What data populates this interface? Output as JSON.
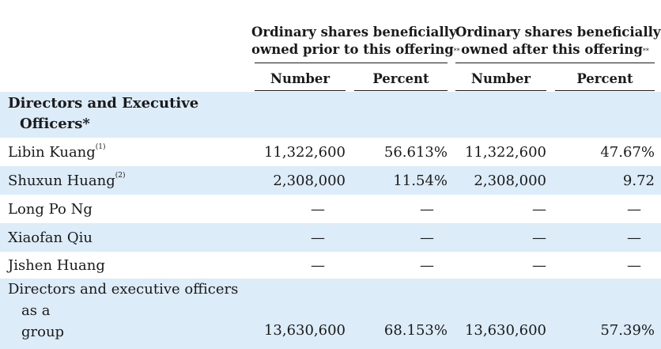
{
  "header": {
    "group_prior": {
      "line1": "Ordinary shares beneficially",
      "line2": "owned prior to this offering",
      "mark": "**"
    },
    "group_after": {
      "line1": "Ordinary shares beneficially",
      "line2": "owned after this offering",
      "mark": "**"
    },
    "col_number_prior": "Number",
    "col_percent_prior": "Percent",
    "col_number_after": "Number",
    "col_percent_after": "Percent"
  },
  "section": {
    "line1": "Directors and Executive",
    "line2": "Officers*"
  },
  "rows": [
    {
      "name": "Libin Kuang",
      "note": "(1)",
      "num_prior": "11,322,600",
      "pct_prior": "56.613%",
      "num_after": "11,322,600",
      "pct_after": "47.67%"
    },
    {
      "name": "Shuxun Huang",
      "note": "(2)",
      "num_prior": "2,308,000",
      "pct_prior": "11.54%",
      "num_after": "2,308,000",
      "pct_after": "9.72"
    },
    {
      "name": "Long Po Ng",
      "note": "",
      "num_prior": "—",
      "pct_prior": "—",
      "num_after": "—",
      "pct_after": "—"
    },
    {
      "name": "Xiaofan Qiu",
      "note": "",
      "num_prior": "—",
      "pct_prior": "—",
      "num_after": "—",
      "pct_after": "—"
    },
    {
      "name": "Jishen Huang",
      "note": "",
      "num_prior": "—",
      "pct_prior": "—",
      "num_after": "—",
      "pct_after": "—"
    }
  ],
  "group_row": {
    "line1": "Directors and executive officers",
    "line2": "as a",
    "line3": "group",
    "num_prior": "13,630,600",
    "pct_prior": "68.153%",
    "num_after": "13,630,600",
    "pct_after": "57.39%"
  }
}
